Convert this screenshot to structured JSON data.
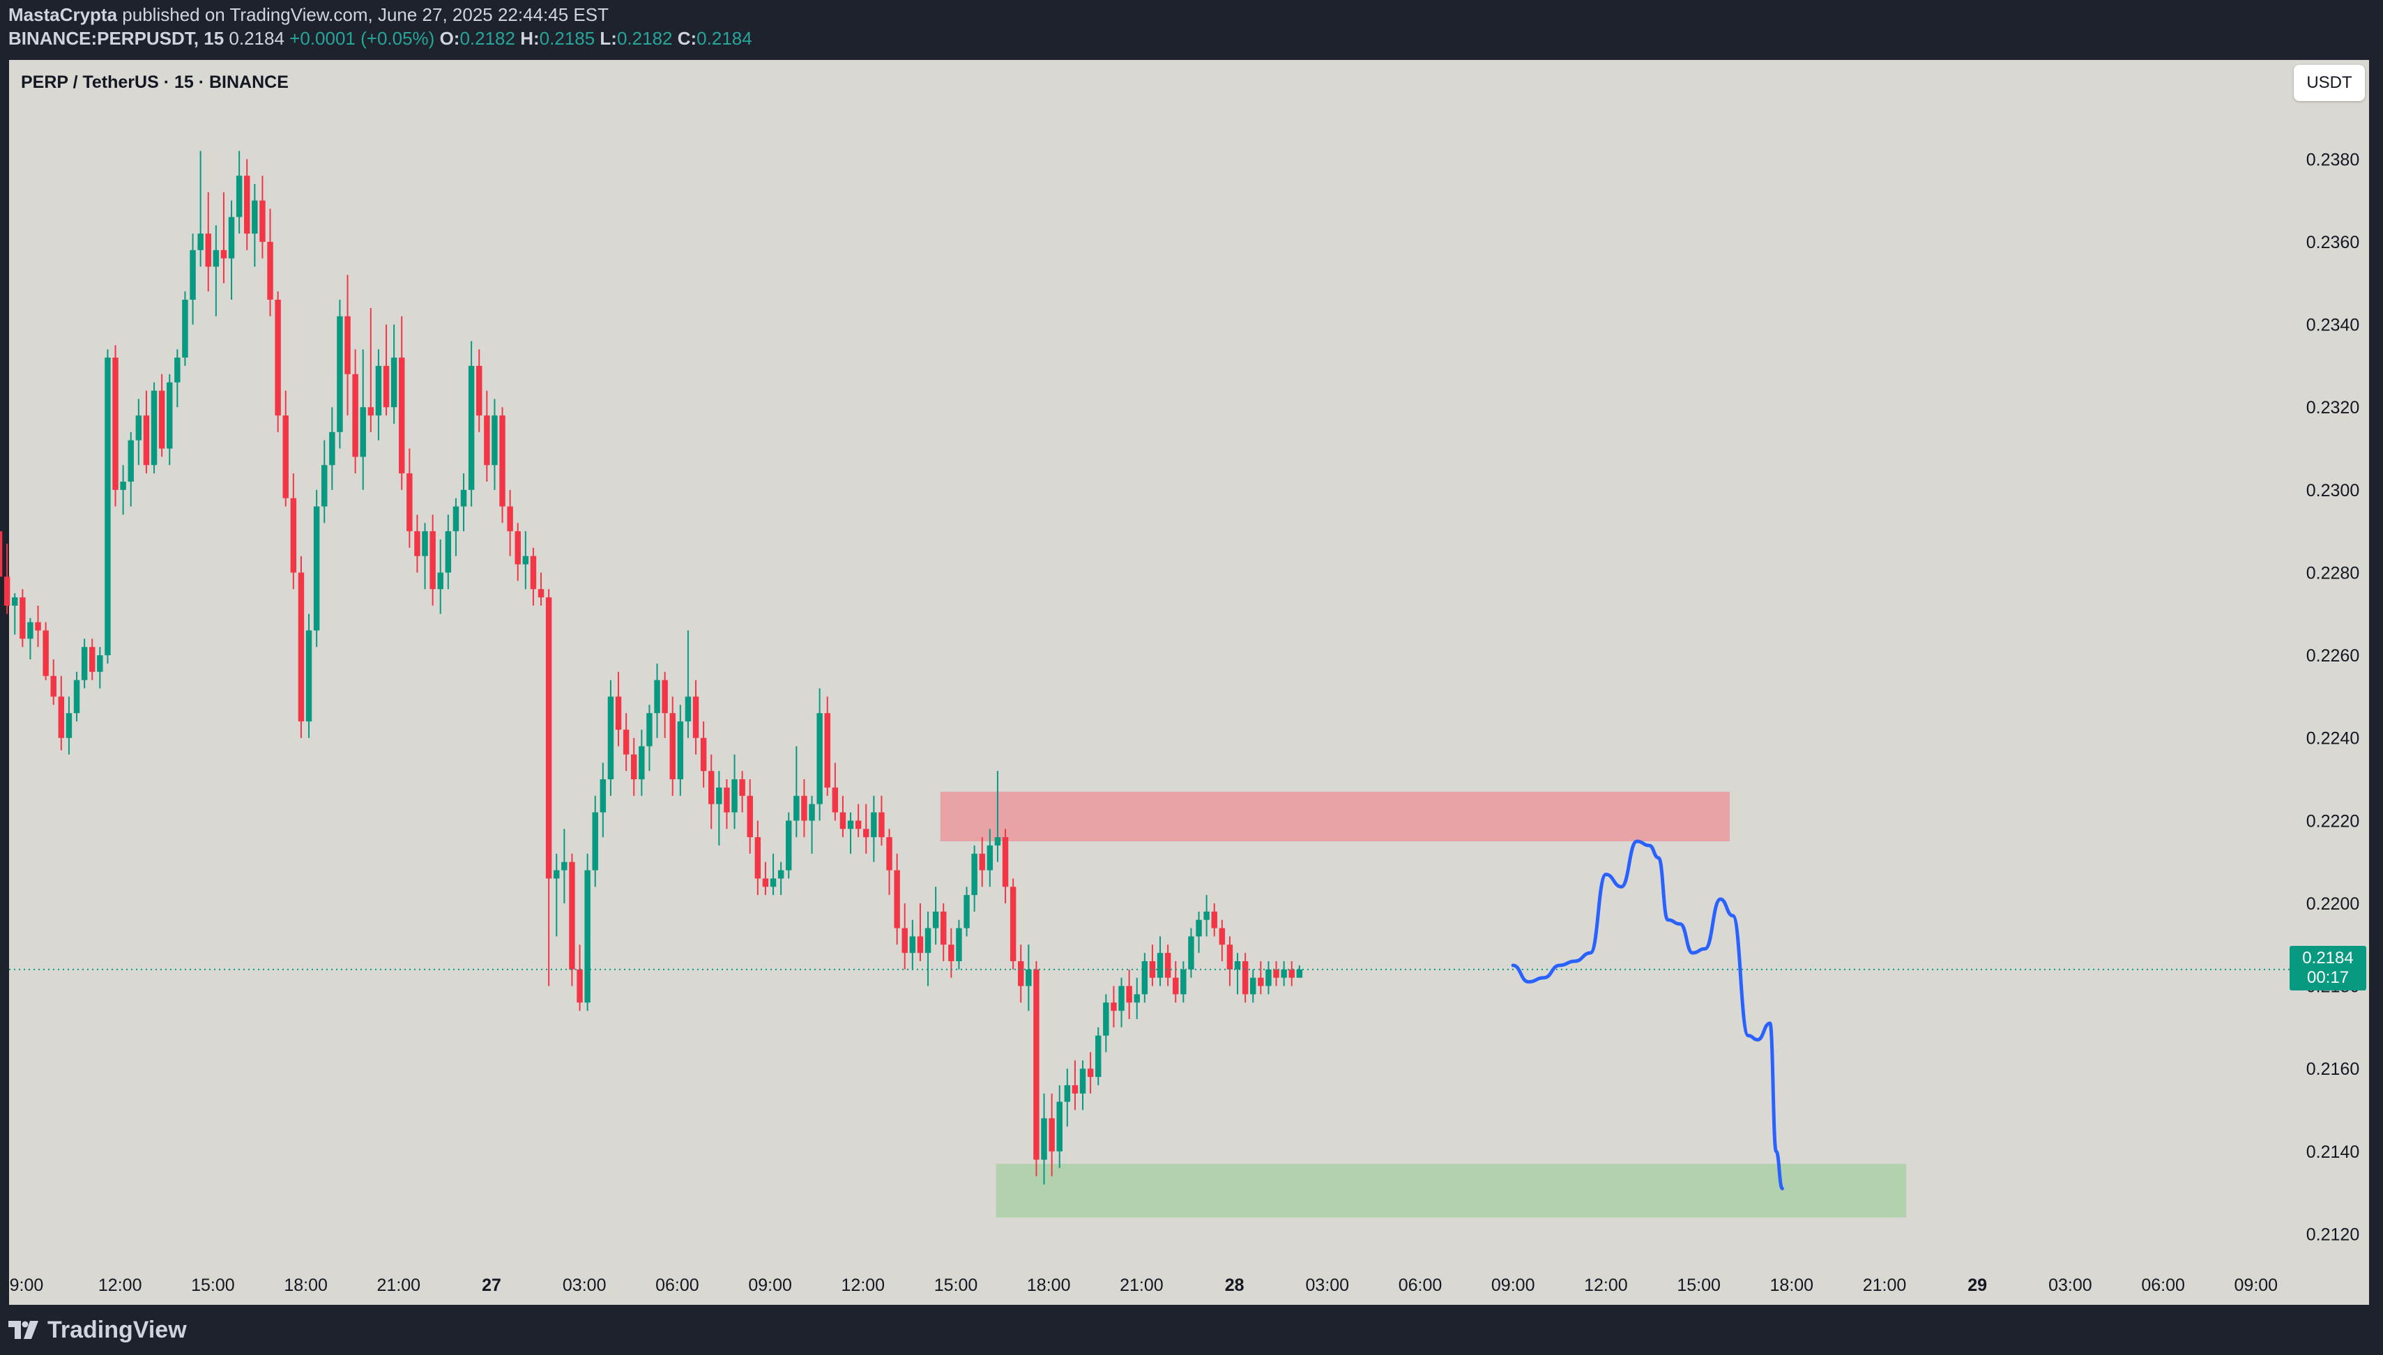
{
  "header": {
    "author": "MastaCrypta",
    "published_text": "published on TradingView.com, June 27, 2025 22:44:45 EST",
    "ticker": "BINANCE:PERPUSDT, 15",
    "last_price": "0.2184",
    "change": "+0.0001 (+0.05%)",
    "o_label": "O:",
    "o_value": "0.2182",
    "h_label": "H:",
    "h_value": "0.2185",
    "l_label": "L:",
    "l_value": "0.2182",
    "c_label": "C:",
    "c_value": "0.2184"
  },
  "chart_title": "PERP / TetherUS · 15 · BINANCE",
  "currency_button": "USDT",
  "price_badge": {
    "price": "0.2184",
    "countdown": "00:17"
  },
  "footer": {
    "brand": "TradingView"
  },
  "colors": {
    "up": "#089981",
    "down": "#f23645",
    "background": "#d9d8d2",
    "resistance_zone": "#e8a3a7",
    "support_zone": "#b2d1ad",
    "projection_line": "#2962ff"
  },
  "chart_data": {
    "type": "candlestick",
    "timeframe": "15",
    "y_axis_labels": [
      "0.2380",
      "0.2360",
      "0.2340",
      "0.2320",
      "0.2300",
      "0.2280",
      "0.2260",
      "0.2240",
      "0.2220",
      "0.2200",
      "0.2180",
      "0.2160",
      "0.2140",
      "0.2120"
    ],
    "y_range": [
      0.2113,
      0.2404
    ],
    "x_axis_labels": [
      {
        "label": "9:00",
        "hour": -6,
        "bold": false
      },
      {
        "label": "12:00",
        "hour": -3,
        "bold": false
      },
      {
        "label": "15:00",
        "hour": 0,
        "bold": false
      },
      {
        "label": "18:00",
        "hour": 3,
        "bold": false
      },
      {
        "label": "21:00",
        "hour": 6,
        "bold": false
      },
      {
        "label": "27",
        "hour": 9,
        "bold": true
      },
      {
        "label": "03:00",
        "hour": 12,
        "bold": false
      },
      {
        "label": "06:00",
        "hour": 15,
        "bold": false
      },
      {
        "label": "09:00",
        "hour": 18,
        "bold": false
      },
      {
        "label": "12:00",
        "hour": 21,
        "bold": false
      },
      {
        "label": "15:00",
        "hour": 24,
        "bold": false
      },
      {
        "label": "18:00",
        "hour": 27,
        "bold": false
      },
      {
        "label": "21:00",
        "hour": 30,
        "bold": false
      },
      {
        "label": "28",
        "hour": 33,
        "bold": true
      },
      {
        "label": "03:00",
        "hour": 36,
        "bold": false
      },
      {
        "label": "06:00",
        "hour": 39,
        "bold": false
      },
      {
        "label": "09:00",
        "hour": 42,
        "bold": false
      },
      {
        "label": "12:00",
        "hour": 45,
        "bold": false
      },
      {
        "label": "15:00",
        "hour": 48,
        "bold": false
      },
      {
        "label": "18:00",
        "hour": 51,
        "bold": false
      },
      {
        "label": "21:00",
        "hour": 54,
        "bold": false
      },
      {
        "label": "29",
        "hour": 57,
        "bold": true
      },
      {
        "label": "03:00",
        "hour": 60,
        "bold": false
      },
      {
        "label": "06:00",
        "hour": 63,
        "bold": false
      },
      {
        "label": "09:00",
        "hour": 66,
        "bold": false
      }
    ],
    "candle_start_hour": -6.9,
    "candle_interval_hours": 0.25,
    "current_price": 0.2184,
    "resistance_zone": {
      "hour_start": 23.5,
      "hour_end": 49.0,
      "price_low": 0.2215,
      "price_high": 0.2227
    },
    "support_zone": {
      "hour_start": 25.3,
      "hour_end": 54.7,
      "price_low": 0.2124,
      "price_high": 0.2137
    },
    "projection_path": [
      [
        42.0,
        0.2185
      ],
      [
        42.5,
        0.2181
      ],
      [
        43.0,
        0.2182
      ],
      [
        43.5,
        0.2185
      ],
      [
        44.0,
        0.2186
      ],
      [
        44.5,
        0.2188
      ],
      [
        45.0,
        0.2207
      ],
      [
        45.5,
        0.2204
      ],
      [
        46.0,
        0.2215
      ],
      [
        46.4,
        0.2214
      ],
      [
        46.7,
        0.2211
      ],
      [
        47.0,
        0.2196
      ],
      [
        47.4,
        0.2195
      ],
      [
        47.8,
        0.2188
      ],
      [
        48.2,
        0.2189
      ],
      [
        48.7,
        0.2201
      ],
      [
        49.1,
        0.2197
      ],
      [
        49.6,
        0.2168
      ],
      [
        49.9,
        0.2167
      ],
      [
        50.3,
        0.2171
      ],
      [
        50.5,
        0.214
      ],
      [
        50.7,
        0.2131
      ]
    ],
    "candles": [
      [
        0.229,
        0.2288,
        0.2278,
        0.2279
      ],
      [
        0.2279,
        0.2287,
        0.227,
        0.2272
      ],
      [
        0.2272,
        0.2275,
        0.2265,
        0.2274
      ],
      [
        0.2274,
        0.2276,
        0.2262,
        0.2264
      ],
      [
        0.2264,
        0.2269,
        0.2259,
        0.2268
      ],
      [
        0.2268,
        0.2272,
        0.2262,
        0.2266
      ],
      [
        0.2266,
        0.2268,
        0.2254,
        0.2255
      ],
      [
        0.2255,
        0.2259,
        0.2248,
        0.225
      ],
      [
        0.225,
        0.2255,
        0.2237,
        0.224
      ],
      [
        0.224,
        0.225,
        0.2236,
        0.2246
      ],
      [
        0.2246,
        0.2256,
        0.2244,
        0.2254
      ],
      [
        0.2254,
        0.2264,
        0.2252,
        0.2262
      ],
      [
        0.2262,
        0.2264,
        0.2254,
        0.2256
      ],
      [
        0.2256,
        0.2262,
        0.2252,
        0.226
      ],
      [
        0.226,
        0.2334,
        0.2258,
        0.2332
      ],
      [
        0.2332,
        0.2335,
        0.2296,
        0.23
      ],
      [
        0.23,
        0.2306,
        0.2294,
        0.2302
      ],
      [
        0.2302,
        0.2314,
        0.2296,
        0.2312
      ],
      [
        0.2312,
        0.2322,
        0.2306,
        0.2318
      ],
      [
        0.2318,
        0.2324,
        0.2304,
        0.2306
      ],
      [
        0.2306,
        0.2326,
        0.2304,
        0.2324
      ],
      [
        0.2324,
        0.2328,
        0.2308,
        0.231
      ],
      [
        0.231,
        0.2328,
        0.2306,
        0.2326
      ],
      [
        0.2326,
        0.2334,
        0.232,
        0.2332
      ],
      [
        0.2332,
        0.2348,
        0.233,
        0.2346
      ],
      [
        0.2346,
        0.2362,
        0.234,
        0.2358
      ],
      [
        0.2358,
        0.2382,
        0.2354,
        0.2362
      ],
      [
        0.2362,
        0.2372,
        0.2348,
        0.2354
      ],
      [
        0.2354,
        0.2364,
        0.2342,
        0.2358
      ],
      [
        0.2358,
        0.2372,
        0.235,
        0.2356
      ],
      [
        0.2356,
        0.237,
        0.2346,
        0.2366
      ],
      [
        0.2366,
        0.2382,
        0.2362,
        0.2376
      ],
      [
        0.2376,
        0.238,
        0.2358,
        0.2362
      ],
      [
        0.2362,
        0.2374,
        0.2354,
        0.237
      ],
      [
        0.237,
        0.2376,
        0.2356,
        0.236
      ],
      [
        0.236,
        0.2368,
        0.2342,
        0.2346
      ],
      [
        0.2346,
        0.2348,
        0.2314,
        0.2318
      ],
      [
        0.2318,
        0.2324,
        0.2296,
        0.2298
      ],
      [
        0.2298,
        0.2304,
        0.2276,
        0.228
      ],
      [
        0.228,
        0.2284,
        0.224,
        0.2244
      ],
      [
        0.2244,
        0.227,
        0.224,
        0.2266
      ],
      [
        0.2266,
        0.23,
        0.2262,
        0.2296
      ],
      [
        0.2296,
        0.2312,
        0.2292,
        0.2306
      ],
      [
        0.2306,
        0.232,
        0.23,
        0.2314
      ],
      [
        0.2314,
        0.2346,
        0.231,
        0.2342
      ],
      [
        0.2342,
        0.2352,
        0.2318,
        0.2328
      ],
      [
        0.2328,
        0.2334,
        0.2304,
        0.2308
      ],
      [
        0.2308,
        0.2334,
        0.23,
        0.232
      ],
      [
        0.232,
        0.2344,
        0.2314,
        0.2318
      ],
      [
        0.2318,
        0.2334,
        0.2312,
        0.233
      ],
      [
        0.233,
        0.234,
        0.2318,
        0.232
      ],
      [
        0.232,
        0.234,
        0.2316,
        0.2332
      ],
      [
        0.2332,
        0.2342,
        0.23,
        0.2304
      ],
      [
        0.2304,
        0.231,
        0.2286,
        0.229
      ],
      [
        0.229,
        0.2294,
        0.228,
        0.2284
      ],
      [
        0.2284,
        0.2292,
        0.2276,
        0.229
      ],
      [
        0.229,
        0.2294,
        0.2272,
        0.2276
      ],
      [
        0.2276,
        0.2288,
        0.227,
        0.228
      ],
      [
        0.228,
        0.2294,
        0.2276,
        0.229
      ],
      [
        0.229,
        0.2298,
        0.2284,
        0.2296
      ],
      [
        0.2296,
        0.2304,
        0.229,
        0.23
      ],
      [
        0.23,
        0.2336,
        0.2296,
        0.233
      ],
      [
        0.233,
        0.2334,
        0.2314,
        0.2318
      ],
      [
        0.2318,
        0.2324,
        0.2302,
        0.2306
      ],
      [
        0.2306,
        0.2322,
        0.23,
        0.2318
      ],
      [
        0.2318,
        0.232,
        0.2292,
        0.2296
      ],
      [
        0.2296,
        0.23,
        0.2284,
        0.229
      ],
      [
        0.229,
        0.2292,
        0.2278,
        0.2282
      ],
      [
        0.2282,
        0.229,
        0.2276,
        0.2284
      ],
      [
        0.2284,
        0.2286,
        0.2272,
        0.2276
      ],
      [
        0.2276,
        0.228,
        0.2272,
        0.2274
      ],
      [
        0.2274,
        0.2276,
        0.218,
        0.2206
      ],
      [
        0.2206,
        0.2212,
        0.2192,
        0.2208
      ],
      [
        0.2208,
        0.2218,
        0.22,
        0.221
      ],
      [
        0.221,
        0.2212,
        0.218,
        0.2184
      ],
      [
        0.2184,
        0.219,
        0.2174,
        0.2176
      ],
      [
        0.2176,
        0.2212,
        0.2174,
        0.2208
      ],
      [
        0.2208,
        0.2226,
        0.2204,
        0.2222
      ],
      [
        0.2222,
        0.2234,
        0.2216,
        0.223
      ],
      [
        0.223,
        0.2254,
        0.2226,
        0.225
      ],
      [
        0.225,
        0.2256,
        0.2238,
        0.2242
      ],
      [
        0.2242,
        0.2246,
        0.2232,
        0.2236
      ],
      [
        0.2236,
        0.224,
        0.2226,
        0.223
      ],
      [
        0.223,
        0.2242,
        0.2226,
        0.2238
      ],
      [
        0.2238,
        0.2248,
        0.2232,
        0.2246
      ],
      [
        0.2246,
        0.2258,
        0.224,
        0.2254
      ],
      [
        0.2254,
        0.2256,
        0.224,
        0.2246
      ],
      [
        0.2246,
        0.225,
        0.2226,
        0.223
      ],
      [
        0.223,
        0.2248,
        0.2226,
        0.2244
      ],
      [
        0.2244,
        0.2266,
        0.224,
        0.225
      ],
      [
        0.225,
        0.2254,
        0.2236,
        0.224
      ],
      [
        0.224,
        0.2244,
        0.2228,
        0.2232
      ],
      [
        0.2232,
        0.2236,
        0.2218,
        0.2224
      ],
      [
        0.2224,
        0.2232,
        0.2214,
        0.2228
      ],
      [
        0.2228,
        0.223,
        0.2218,
        0.2222
      ],
      [
        0.2222,
        0.2236,
        0.2218,
        0.223
      ],
      [
        0.223,
        0.2232,
        0.2222,
        0.2226
      ],
      [
        0.2226,
        0.223,
        0.2212,
        0.2216
      ],
      [
        0.2216,
        0.222,
        0.2202,
        0.2206
      ],
      [
        0.2206,
        0.221,
        0.2202,
        0.2204
      ],
      [
        0.2204,
        0.2212,
        0.2202,
        0.2206
      ],
      [
        0.2206,
        0.221,
        0.2202,
        0.2208
      ],
      [
        0.2208,
        0.2222,
        0.2206,
        0.222
      ],
      [
        0.222,
        0.2238,
        0.2216,
        0.2226
      ],
      [
        0.2226,
        0.223,
        0.2216,
        0.222
      ],
      [
        0.222,
        0.2226,
        0.2212,
        0.2224
      ],
      [
        0.2224,
        0.2252,
        0.222,
        0.2246
      ],
      [
        0.2246,
        0.225,
        0.2226,
        0.2228
      ],
      [
        0.2228,
        0.2234,
        0.222,
        0.2222
      ],
      [
        0.2222,
        0.2226,
        0.2216,
        0.2218
      ],
      [
        0.2218,
        0.2222,
        0.2212,
        0.222
      ],
      [
        0.222,
        0.2224,
        0.2216,
        0.2218
      ],
      [
        0.2218,
        0.2224,
        0.2212,
        0.2216
      ],
      [
        0.2216,
        0.2226,
        0.221,
        0.2222
      ],
      [
        0.2222,
        0.2226,
        0.2214,
        0.2216
      ],
      [
        0.2216,
        0.2218,
        0.2202,
        0.2208
      ],
      [
        0.2208,
        0.2212,
        0.219,
        0.2194
      ],
      [
        0.2194,
        0.22,
        0.2184,
        0.2188
      ],
      [
        0.2188,
        0.2196,
        0.2184,
        0.2192
      ],
      [
        0.2192,
        0.22,
        0.2186,
        0.2188
      ],
      [
        0.2188,
        0.2198,
        0.218,
        0.2194
      ],
      [
        0.2194,
        0.2204,
        0.219,
        0.2198
      ],
      [
        0.2198,
        0.22,
        0.2186,
        0.219
      ],
      [
        0.219,
        0.2194,
        0.2182,
        0.2186
      ],
      [
        0.2186,
        0.2196,
        0.2184,
        0.2194
      ],
      [
        0.2194,
        0.2204,
        0.2192,
        0.2202
      ],
      [
        0.2202,
        0.2214,
        0.2198,
        0.2212
      ],
      [
        0.2212,
        0.2216,
        0.2204,
        0.2208
      ],
      [
        0.2208,
        0.2218,
        0.2204,
        0.2214
      ],
      [
        0.2214,
        0.2232,
        0.221,
        0.2216
      ],
      [
        0.2216,
        0.2218,
        0.22,
        0.2204
      ],
      [
        0.2204,
        0.2206,
        0.2184,
        0.2186
      ],
      [
        0.2186,
        0.219,
        0.2176,
        0.218
      ],
      [
        0.218,
        0.219,
        0.2174,
        0.2184
      ],
      [
        0.2184,
        0.2186,
        0.2134,
        0.2138
      ],
      [
        0.2138,
        0.2154,
        0.2132,
        0.2148
      ],
      [
        0.2148,
        0.2154,
        0.2134,
        0.214
      ],
      [
        0.214,
        0.2156,
        0.2136,
        0.2152
      ],
      [
        0.2152,
        0.216,
        0.2146,
        0.2156
      ],
      [
        0.2156,
        0.2162,
        0.215,
        0.2154
      ],
      [
        0.2154,
        0.2162,
        0.215,
        0.216
      ],
      [
        0.216,
        0.2164,
        0.2154,
        0.2158
      ],
      [
        0.2158,
        0.217,
        0.2156,
        0.2168
      ],
      [
        0.2168,
        0.2178,
        0.2164,
        0.2176
      ],
      [
        0.2176,
        0.218,
        0.217,
        0.2174
      ],
      [
        0.2174,
        0.2182,
        0.217,
        0.218
      ],
      [
        0.218,
        0.2184,
        0.2172,
        0.2176
      ],
      [
        0.2176,
        0.2182,
        0.2172,
        0.2178
      ],
      [
        0.2178,
        0.2188,
        0.2176,
        0.2186
      ],
      [
        0.2186,
        0.219,
        0.218,
        0.2182
      ],
      [
        0.2182,
        0.2192,
        0.218,
        0.2188
      ],
      [
        0.2188,
        0.219,
        0.218,
        0.2182
      ],
      [
        0.2182,
        0.2186,
        0.2176,
        0.2178
      ],
      [
        0.2178,
        0.2186,
        0.2176,
        0.2184
      ],
      [
        0.2184,
        0.2194,
        0.2182,
        0.2192
      ],
      [
        0.2192,
        0.2198,
        0.2188,
        0.2196
      ],
      [
        0.2196,
        0.2202,
        0.2192,
        0.2198
      ],
      [
        0.2198,
        0.22,
        0.2192,
        0.2194
      ],
      [
        0.2194,
        0.2196,
        0.2186,
        0.219
      ],
      [
        0.219,
        0.2192,
        0.218,
        0.2184
      ],
      [
        0.2184,
        0.2188,
        0.2178,
        0.2186
      ],
      [
        0.2186,
        0.2188,
        0.2176,
        0.2178
      ],
      [
        0.2178,
        0.2184,
        0.2176,
        0.2182
      ],
      [
        0.2182,
        0.2186,
        0.2178,
        0.218
      ],
      [
        0.218,
        0.2186,
        0.2178,
        0.2184
      ],
      [
        0.2184,
        0.2186,
        0.218,
        0.2182
      ],
      [
        0.2182,
        0.2186,
        0.218,
        0.2184
      ],
      [
        0.2184,
        0.2186,
        0.218,
        0.2182
      ],
      [
        0.2182,
        0.2185,
        0.2182,
        0.2184
      ]
    ]
  }
}
